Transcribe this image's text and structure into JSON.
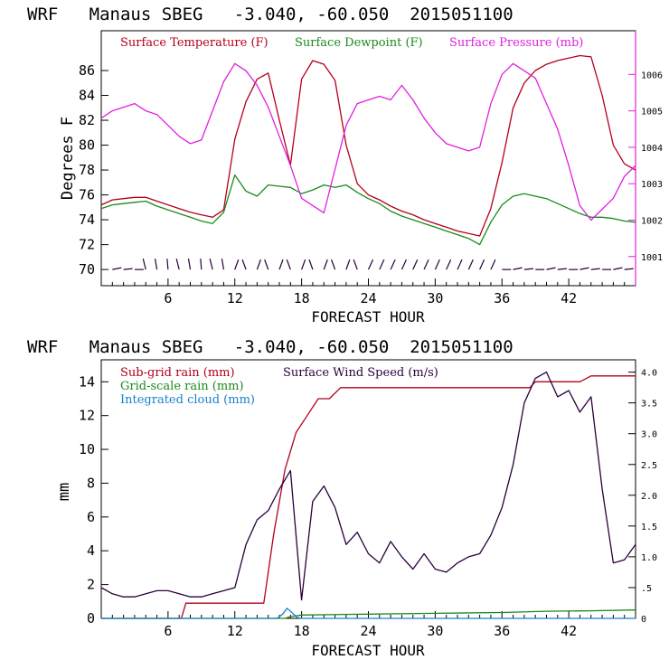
{
  "colors": {
    "temperature": "#b3001b",
    "dewpoint": "#1a8a1a",
    "pressure": "#e020e0",
    "subgrid_rain": "#b3001b",
    "gridscale_rain": "#1a8a1a",
    "cloud": "#1a80c8",
    "wind_speed": "#2a003a",
    "wind_barb": "#2a003a"
  },
  "chart_data": [
    {
      "type": "line",
      "title": "WRF   Manaus SBEG   -3.040, -60.050  2015051100",
      "xlabel": "FORECAST HOUR",
      "ylabel": "Degrees F",
      "y2label": "",
      "xlim": [
        0,
        48
      ],
      "ylim": [
        68.7,
        89.2
      ],
      "y2lim": [
        1000.2,
        1007.2
      ],
      "x_ticks": [
        "6",
        "12",
        "18",
        "24",
        "30",
        "36",
        "42"
      ],
      "y_ticks": [
        "70",
        "72",
        "74",
        "76",
        "78",
        "80",
        "82",
        "84",
        "86"
      ],
      "y2_ticks": [
        "1001",
        "1002",
        "1003",
        "1004",
        "1005",
        "1006"
      ],
      "legend_position": "top",
      "series": [
        {
          "name": "Surface Temperature (F)",
          "axis": "left",
          "x": [
            0,
            1,
            2,
            3,
            4,
            5,
            6,
            7,
            8,
            9,
            10,
            11,
            12,
            13,
            14,
            15,
            16,
            17,
            18,
            19,
            20,
            21,
            22,
            23,
            24,
            25,
            26,
            27,
            28,
            29,
            30,
            31,
            32,
            33,
            34,
            35,
            36,
            37,
            38,
            39,
            40,
            41,
            42,
            43,
            44,
            45,
            46,
            47,
            48
          ],
          "y": [
            75.2,
            75.6,
            75.7,
            75.8,
            75.8,
            75.5,
            75.2,
            74.9,
            74.6,
            74.4,
            74.2,
            74.8,
            80.5,
            83.5,
            85.3,
            85.8,
            82.0,
            78.4,
            85.3,
            86.8,
            86.5,
            85.2,
            80.0,
            76.9,
            76.0,
            75.6,
            75.1,
            74.7,
            74.4,
            74.0,
            73.7,
            73.4,
            73.1,
            72.9,
            72.7,
            74.9,
            78.6,
            83.0,
            85.0,
            86.0,
            86.5,
            86.8,
            87.0,
            87.2,
            87.1,
            84.0,
            80.0,
            78.5,
            78.0
          ]
        },
        {
          "name": "Surface Dewpoint (F)",
          "axis": "left",
          "x": [
            0,
            1,
            2,
            3,
            4,
            5,
            6,
            7,
            8,
            9,
            10,
            11,
            12,
            13,
            14,
            15,
            16,
            17,
            18,
            19,
            20,
            21,
            22,
            23,
            24,
            25,
            26,
            27,
            28,
            29,
            30,
            31,
            32,
            33,
            34,
            35,
            36,
            37,
            38,
            39,
            40,
            41,
            42,
            43,
            44,
            45,
            46,
            47,
            48
          ],
          "y": [
            74.9,
            75.2,
            75.3,
            75.4,
            75.5,
            75.1,
            74.8,
            74.5,
            74.2,
            73.9,
            73.7,
            74.6,
            77.6,
            76.3,
            75.9,
            76.8,
            76.7,
            76.6,
            76.1,
            76.4,
            76.8,
            76.6,
            76.8,
            76.2,
            75.7,
            75.3,
            74.7,
            74.3,
            74.0,
            73.7,
            73.4,
            73.1,
            72.8,
            72.5,
            72.0,
            73.8,
            75.2,
            75.9,
            76.1,
            75.9,
            75.7,
            75.3,
            74.9,
            74.5,
            74.2,
            74.2,
            74.1,
            73.9,
            73.8
          ]
        },
        {
          "name": "Surface Pressure (mb)",
          "axis": "right",
          "x": [
            0,
            1,
            2,
            3,
            4,
            5,
            6,
            7,
            8,
            9,
            10,
            11,
            12,
            13,
            14,
            15,
            16,
            17,
            18,
            19,
            20,
            21,
            22,
            23,
            24,
            25,
            26,
            27,
            28,
            29,
            30,
            31,
            32,
            33,
            34,
            35,
            36,
            37,
            38,
            39,
            40,
            41,
            42,
            43,
            44,
            45,
            46,
            47,
            48
          ],
          "y": [
            1004.8,
            1005.0,
            1005.1,
            1005.2,
            1005.0,
            1004.9,
            1004.6,
            1004.3,
            1004.1,
            1004.2,
            1005.0,
            1005.8,
            1006.3,
            1006.1,
            1005.7,
            1005.1,
            1004.3,
            1003.5,
            1002.6,
            1002.4,
            1002.2,
            1003.4,
            1004.6,
            1005.2,
            1005.3,
            1005.4,
            1005.3,
            1005.7,
            1005.3,
            1004.8,
            1004.4,
            1004.1,
            1004.0,
            1003.9,
            1004.0,
            1005.2,
            1006.0,
            1006.3,
            1006.1,
            1005.9,
            1005.2,
            1004.5,
            1003.5,
            1002.4,
            1002.0,
            1002.3,
            1002.6,
            1003.2,
            1003.5
          ]
        }
      ],
      "wind_barbs": {
        "x": [
          1,
          2,
          3,
          4,
          5,
          6,
          7,
          8,
          9,
          10,
          11,
          12,
          13,
          14,
          15,
          16,
          17,
          18,
          19,
          20,
          21,
          22,
          23,
          24,
          25,
          26,
          27,
          28,
          29,
          30,
          31,
          32,
          33,
          34,
          35,
          36,
          37,
          38,
          39,
          40,
          41,
          42,
          43,
          44,
          45,
          46,
          47
        ]
      }
    },
    {
      "type": "line",
      "title": "WRF   Manaus SBEG   -3.040, -60.050  2015051100",
      "xlabel": "FORECAST HOUR",
      "ylabel": "mm",
      "y2label": "",
      "xlim": [
        0,
        48
      ],
      "ylim": [
        0,
        15.3
      ],
      "y2lim": [
        0,
        4.2
      ],
      "x_ticks": [
        "6",
        "12",
        "18",
        "24",
        "30",
        "36",
        "42"
      ],
      "y_ticks": [
        "0",
        "2",
        "4",
        "6",
        "8",
        "10",
        "12",
        "14"
      ],
      "y2_ticks": [
        "0",
        ".5",
        "1.0",
        "1.5",
        "2.0",
        "2.5",
        "3.0",
        "3.5",
        "4.0"
      ],
      "legend_position": "top-left",
      "series": [
        {
          "name": "Sub-grid rain (mm)",
          "axis": "left",
          "x": [
            0,
            7.2,
            7.6,
            11.5,
            11.9,
            14.6,
            15.5,
            16.5,
            17.5,
            18.5,
            19.5,
            20.5,
            21.5,
            38.5,
            39,
            43,
            44,
            48
          ],
          "y": [
            0,
            0,
            0.9,
            0.9,
            0.9,
            0.9,
            5.0,
            8.8,
            11.0,
            12.0,
            13.0,
            13.0,
            13.65,
            13.65,
            14.0,
            14.0,
            14.35,
            14.35
          ]
        },
        {
          "name": "Grid-scale rain (mm)",
          "axis": "left",
          "x": [
            0,
            16.5,
            17,
            18,
            24,
            30,
            36,
            40,
            44,
            48
          ],
          "y": [
            0,
            0,
            0.1,
            0.2,
            0.25,
            0.3,
            0.35,
            0.42,
            0.45,
            0.5
          ]
        },
        {
          "name": "Integrated cloud (mm)",
          "axis": "left",
          "x": [
            0,
            15.8,
            16.3,
            16.7,
            17.2,
            17.6,
            18,
            48
          ],
          "y": [
            0,
            0,
            0.25,
            0.6,
            0.3,
            0.05,
            0,
            0
          ]
        },
        {
          "name": "Surface Wind Speed (m/s)",
          "axis": "right",
          "x": [
            0,
            1,
            2,
            3,
            4,
            5,
            6,
            7,
            8,
            9,
            10,
            11,
            12,
            13,
            14,
            15,
            16,
            17,
            18,
            19,
            20,
            21,
            22,
            23,
            24,
            25,
            26,
            27,
            28,
            29,
            30,
            31,
            32,
            33,
            34,
            35,
            36,
            37,
            38,
            39,
            40,
            41,
            42,
            43,
            44,
            45,
            46,
            47,
            48
          ],
          "y": [
            0.5,
            0.4,
            0.35,
            0.35,
            0.4,
            0.45,
            0.45,
            0.4,
            0.35,
            0.35,
            0.4,
            0.45,
            0.5,
            1.2,
            1.6,
            1.75,
            2.1,
            2.4,
            0.3,
            1.9,
            2.15,
            1.8,
            1.2,
            1.4,
            1.05,
            0.9,
            1.25,
            1.0,
            0.8,
            1.05,
            0.8,
            0.75,
            0.9,
            1.0,
            1.05,
            1.35,
            1.8,
            2.5,
            3.5,
            3.9,
            4.0,
            3.6,
            3.7,
            3.35,
            3.6,
            2.1,
            0.9,
            0.95,
            1.2
          ]
        }
      ]
    }
  ]
}
